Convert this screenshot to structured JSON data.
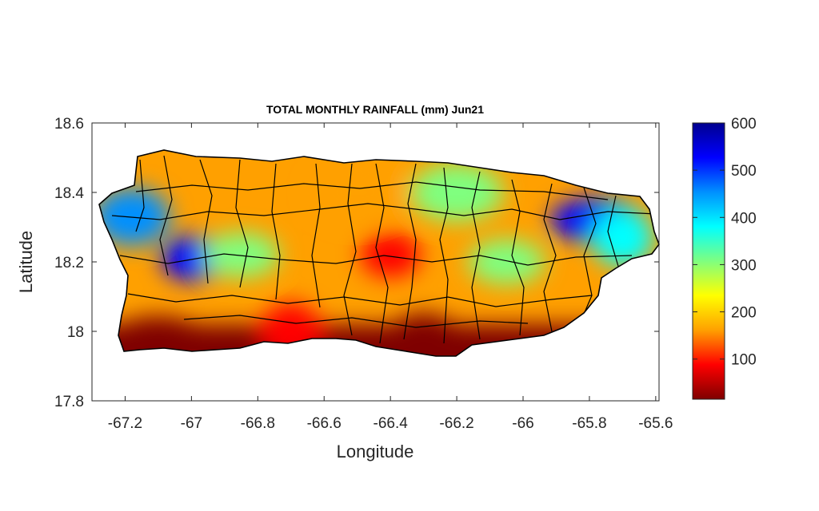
{
  "chart_data": {
    "type": "heatmap",
    "title": "TOTAL MONTHLY RAINFALL (mm) Jun21",
    "xlabel": "Longitude",
    "ylabel": "Latitude",
    "xlim": [
      -67.3,
      -65.59
    ],
    "ylim": [
      17.8,
      18.6
    ],
    "xticks": [
      "-67.2",
      "-67",
      "-66.8",
      "-66.6",
      "-66.4",
      "-66.2",
      "-66",
      "-65.8",
      "-65.6"
    ],
    "yticks": [
      "18.6",
      "18.4",
      "18.2",
      "18",
      "17.8"
    ],
    "colorbar": {
      "range": [
        15,
        600
      ],
      "ticks": [
        "600",
        "500",
        "400",
        "300",
        "200",
        "100"
      ],
      "colormap": "jet-reversed",
      "position": "right"
    },
    "field_peaks": [
      {
        "lon": -67.0,
        "lat": 18.21,
        "rain_mm": 560
      },
      {
        "lon": -67.18,
        "lat": 18.33,
        "rain_mm": 430
      },
      {
        "lon": -65.78,
        "lat": 18.32,
        "rain_mm": 550
      },
      {
        "lon": -65.7,
        "lat": 18.27,
        "rain_mm": 400
      },
      {
        "lon": -66.05,
        "lat": 18.2,
        "rain_mm": 330
      },
      {
        "lon": -66.5,
        "lat": 18.4,
        "rain_mm": 140
      },
      {
        "lon": -66.4,
        "lat": 18.22,
        "rain_mm": 90
      },
      {
        "lon": -66.3,
        "lat": 17.97,
        "rain_mm": 30
      },
      {
        "lon": -67.1,
        "lat": 17.98,
        "rain_mm": 40
      },
      {
        "lon": -66.7,
        "lat": 18.0,
        "rain_mm": 60
      },
      {
        "lon": -66.85,
        "lat": 18.22,
        "rain_mm": 280
      },
      {
        "lon": -66.2,
        "lat": 18.4,
        "rain_mm": 330
      }
    ]
  },
  "colors": {
    "jet": [
      "#7f0000",
      "#ff0000",
      "#ffa000",
      "#ffff00",
      "#7fff7f",
      "#00ffff",
      "#0090ff",
      "#0000ff",
      "#00008f"
    ]
  }
}
